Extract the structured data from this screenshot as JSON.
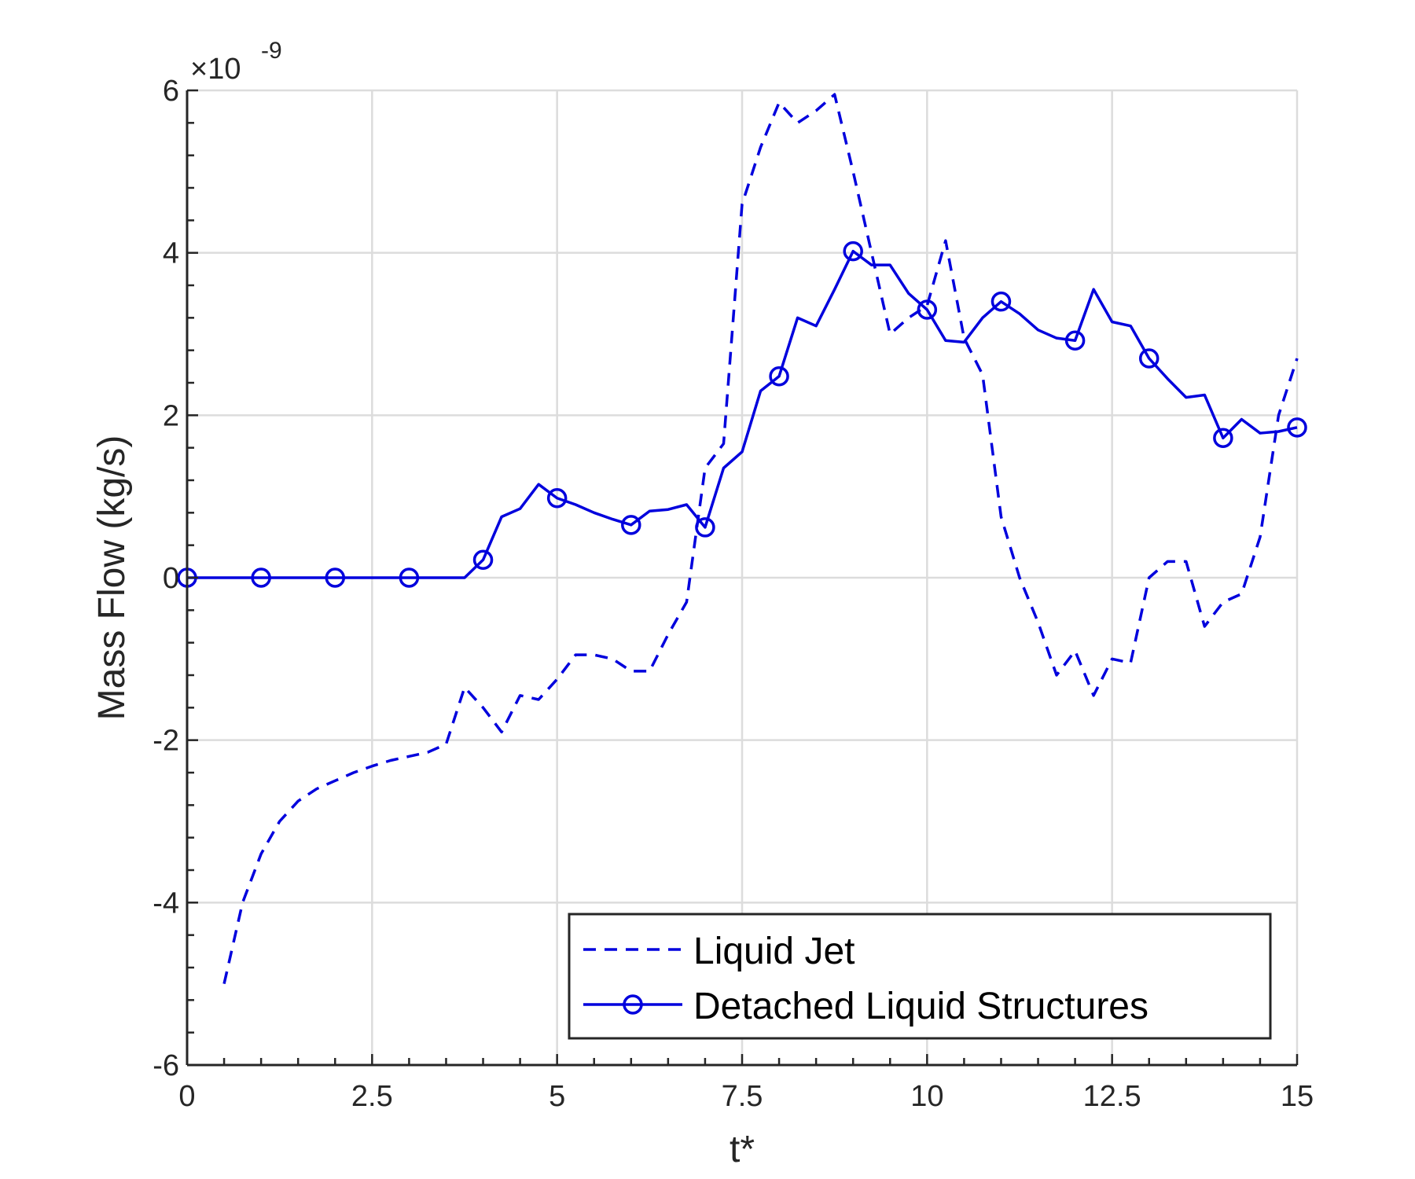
{
  "chart_data": {
    "type": "line",
    "xlabel": "t*",
    "ylabel": "Mass Flow (kg/s)",
    "y_exponent": {
      "base": "×10",
      "power": "-9"
    },
    "xlim": [
      0,
      15
    ],
    "ylim": [
      -6,
      6
    ],
    "xticks": [
      0,
      2.5,
      5,
      7.5,
      10,
      12.5,
      15
    ],
    "xtick_labels": [
      "0",
      "2.5",
      "5",
      "7.5",
      "10",
      "12.5",
      "15"
    ],
    "yticks": [
      -6,
      -4,
      -2,
      0,
      2,
      4,
      6
    ],
    "ytick_labels": [
      "-6",
      "-4",
      "-2",
      "0",
      "2",
      "4",
      "6"
    ],
    "grid": true,
    "legend_position": "bottom-right",
    "line_color": "#0000dd",
    "series": [
      {
        "name": "Liquid Jet",
        "style": "dashed",
        "x": [
          0.5,
          0.75,
          1.0,
          1.25,
          1.5,
          1.75,
          2.0,
          2.25,
          2.5,
          2.75,
          3.0,
          3.25,
          3.5,
          3.75,
          4.0,
          4.25,
          4.5,
          4.75,
          5.0,
          5.25,
          5.5,
          5.75,
          6.0,
          6.25,
          6.5,
          6.75,
          7.0,
          7.25,
          7.5,
          7.75,
          8.0,
          8.25,
          8.5,
          8.75,
          9.0,
          9.25,
          9.5,
          9.75,
          10.0,
          10.25,
          10.5,
          10.75,
          11.0,
          11.25,
          11.5,
          11.75,
          12.0,
          12.25,
          12.5,
          12.75,
          13.0,
          13.25,
          13.5,
          13.75,
          14.0,
          14.25,
          14.5,
          14.75,
          15.0
        ],
        "y": [
          -5.0,
          -4.0,
          -3.4,
          -3.0,
          -2.75,
          -2.6,
          -2.5,
          -2.4,
          -2.32,
          -2.25,
          -2.2,
          -2.15,
          -2.05,
          -1.35,
          -1.6,
          -1.9,
          -1.45,
          -1.5,
          -1.25,
          -0.95,
          -0.95,
          -1.0,
          -1.15,
          -1.15,
          -0.7,
          -0.3,
          1.35,
          1.65,
          4.6,
          5.3,
          5.85,
          5.6,
          5.75,
          5.95,
          5.0,
          4.0,
          3.0,
          3.2,
          3.35,
          4.15,
          2.95,
          2.5,
          0.75,
          0.0,
          -0.55,
          -1.2,
          -0.9,
          -1.45,
          -1.0,
          -1.05,
          0.0,
          0.2,
          0.2,
          -0.6,
          -0.3,
          -0.2,
          0.5,
          2.0,
          2.7
        ]
      },
      {
        "name": "Detached Liquid Structures",
        "style": "solid-circle-markers",
        "x": [
          0,
          1,
          2,
          3,
          3.75,
          4.0,
          4.25,
          4.5,
          4.75,
          5.0,
          5.25,
          5.5,
          5.75,
          6.0,
          6.25,
          6.5,
          6.75,
          7.0,
          7.25,
          7.5,
          7.75,
          8.0,
          8.25,
          8.5,
          8.75,
          9.0,
          9.25,
          9.5,
          9.75,
          10.0,
          10.25,
          10.5,
          10.75,
          11.0,
          11.25,
          11.5,
          11.75,
          12.0,
          12.25,
          12.5,
          12.75,
          13.0,
          13.25,
          13.5,
          13.75,
          14.0,
          14.25,
          14.5,
          14.75,
          15.0
        ],
        "y": [
          0,
          0,
          0,
          0,
          0,
          0.22,
          0.75,
          0.85,
          1.15,
          0.98,
          0.9,
          0.8,
          0.72,
          0.65,
          0.82,
          0.84,
          0.9,
          0.62,
          1.35,
          1.55,
          2.3,
          2.48,
          3.2,
          3.1,
          3.55,
          4.02,
          3.85,
          3.85,
          3.5,
          3.3,
          2.92,
          2.9,
          3.2,
          3.4,
          3.25,
          3.05,
          2.95,
          2.92,
          3.55,
          3.15,
          3.1,
          2.7,
          2.45,
          2.22,
          2.25,
          1.72,
          1.95,
          1.78,
          1.8,
          1.85
        ],
        "marker_x": [
          0,
          1,
          2,
          3,
          4,
          5,
          6,
          7,
          8,
          9,
          10,
          11,
          12,
          13,
          14,
          15
        ]
      }
    ]
  }
}
